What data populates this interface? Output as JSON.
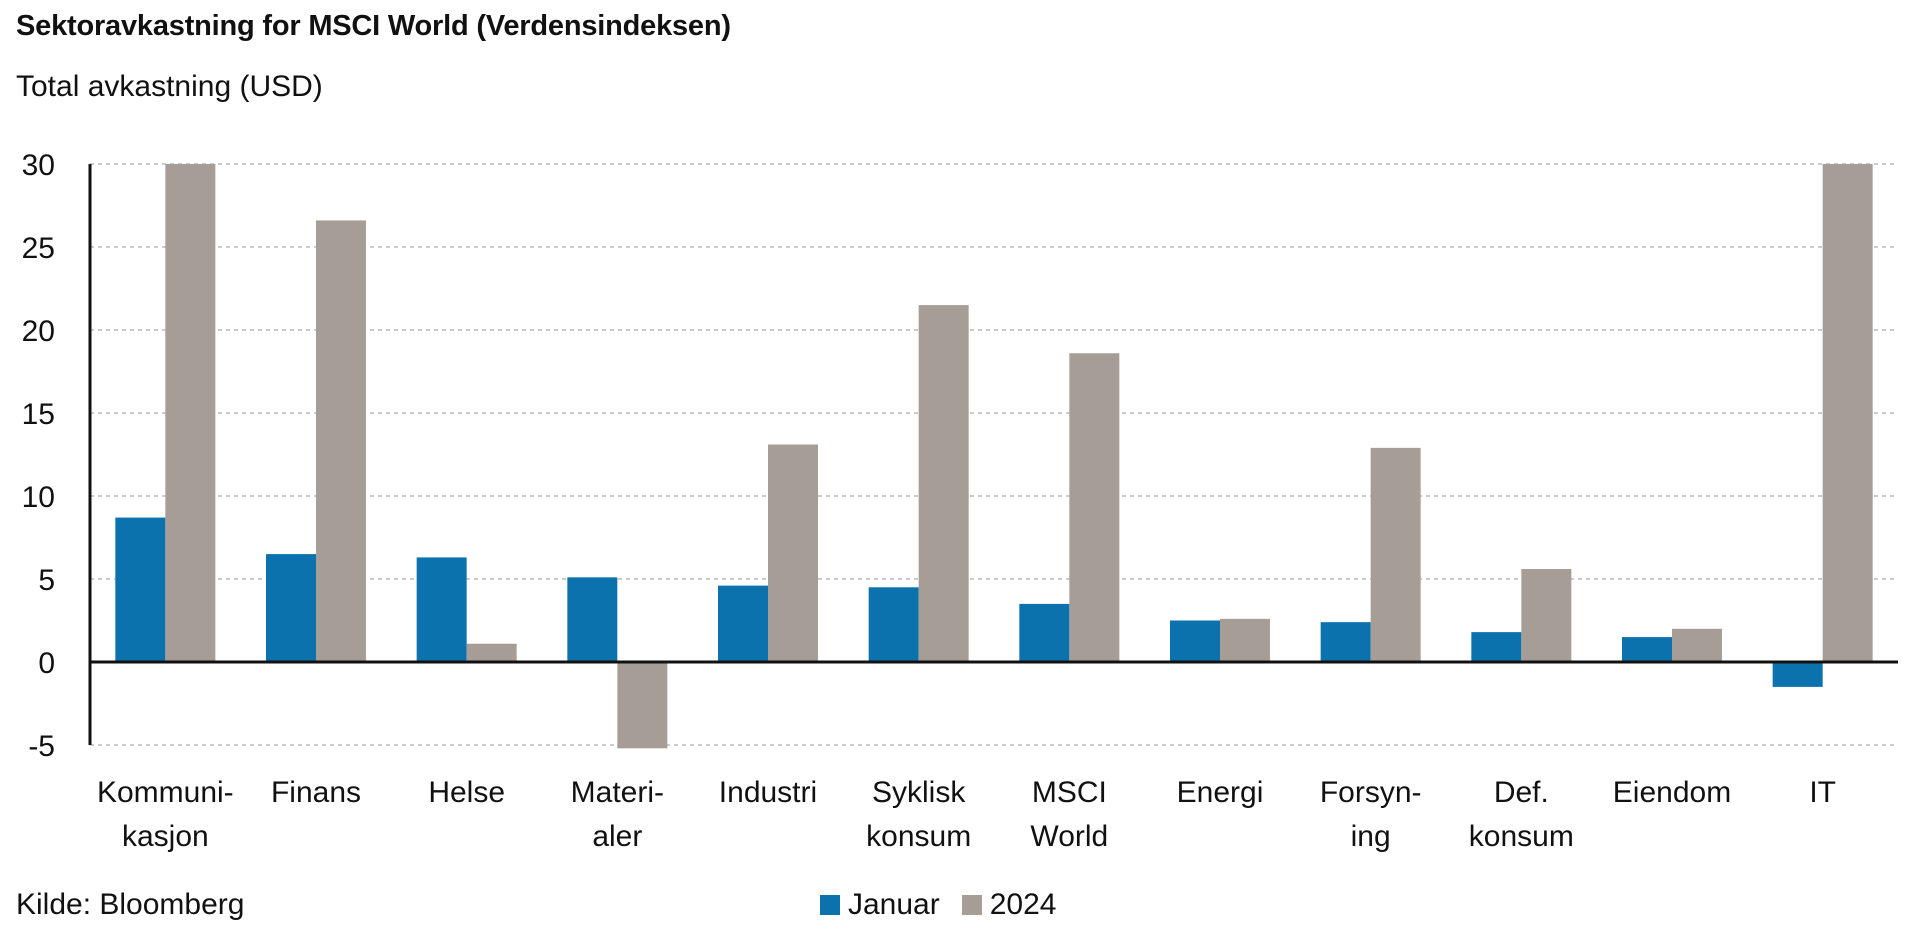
{
  "title": "Sektoravkastning for MSCI World (Verdensindeksen)",
  "subtitle": "Total avkastning (USD)",
  "source": "Kilde: Bloomberg",
  "colors": {
    "Januar": "#0c72ad",
    "2024": "#a59d96"
  },
  "chart_data": {
    "type": "bar",
    "categories": [
      [
        "Kommuni-",
        "kasjon"
      ],
      [
        "Finans"
      ],
      [
        "Helse"
      ],
      [
        "Materi-",
        "aler"
      ],
      [
        "Industri"
      ],
      [
        "Syklisk",
        "konsum"
      ],
      [
        "MSCI",
        "World"
      ],
      [
        "Energi"
      ],
      [
        "Forsyn-",
        "ing"
      ],
      [
        "Def.",
        "konsum"
      ],
      [
        "Eiendom"
      ],
      [
        "IT"
      ]
    ],
    "series": [
      {
        "name": "Januar",
        "values": [
          8.7,
          6.5,
          6.3,
          5.1,
          4.6,
          4.5,
          3.5,
          2.5,
          2.4,
          1.8,
          1.5,
          -1.5
        ]
      },
      {
        "name": "2024",
        "values": [
          30,
          26.6,
          1.1,
          -5.2,
          13.1,
          21.5,
          18.6,
          2.6,
          12.9,
          5.6,
          2.0,
          30
        ]
      }
    ],
    "ylim": [
      -5,
      30
    ],
    "yticks": [
      "30",
      "25",
      "20",
      "15",
      "10",
      "5",
      "0",
      "-5"
    ],
    "grid": true,
    "legend": "bottom-center"
  }
}
